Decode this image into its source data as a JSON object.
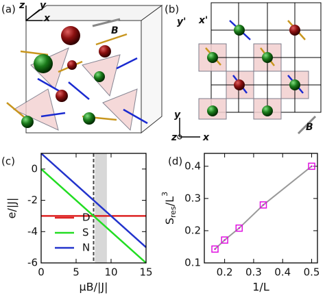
{
  "figure": {
    "panel_labels": [
      "(a)",
      "(b)",
      "(c)",
      "(d)"
    ],
    "panel_a_labels": [
      "z",
      "y",
      "x",
      "B"
    ],
    "panel_b_labels": [
      "y'",
      "x'",
      "y",
      "z",
      "x",
      "B"
    ]
  },
  "chart_data": [
    {
      "type": "line",
      "x": [
        0,
        15
      ],
      "series": [
        {
          "name": "D",
          "color": "#dd2222",
          "values": [
            -3,
            -3
          ]
        },
        {
          "name": "S",
          "color": "#22dd22",
          "values": [
            0,
            -6
          ]
        },
        {
          "name": "N",
          "color": "#2233cc",
          "values": [
            1,
            -5
          ]
        }
      ],
      "xlabel": "μB/|J|",
      "ylabel": "e/|J|",
      "xlim": [
        0,
        15
      ],
      "xticks": [
        0,
        5,
        10,
        15
      ],
      "ylim": [
        -6,
        1
      ],
      "yticks": [
        -6,
        -4,
        -2,
        0
      ],
      "vline": 7.5,
      "shade": [
        7.7,
        9.4
      ],
      "legend": "lower-left",
      "grid": false
    },
    {
      "type": "scatter",
      "x": [
        0.1667,
        0.2,
        0.25,
        0.3333,
        0.5
      ],
      "values": [
        0.143,
        0.171,
        0.208,
        0.28,
        0.4
      ],
      "color": "#e010e0",
      "line_color": "#999999",
      "xlabel": "1/L",
      "ylabel_parts": {
        "base": "S",
        "sub": "res",
        "mid": "/L",
        "sup": "3"
      },
      "xlim": [
        0.13,
        0.52
      ],
      "xticks": [
        0.2,
        0.3,
        0.4,
        0.5
      ],
      "ylim": [
        0.1,
        0.44
      ],
      "yticks": [
        0.1,
        0.2,
        0.3,
        0.4
      ],
      "grid": false
    }
  ]
}
